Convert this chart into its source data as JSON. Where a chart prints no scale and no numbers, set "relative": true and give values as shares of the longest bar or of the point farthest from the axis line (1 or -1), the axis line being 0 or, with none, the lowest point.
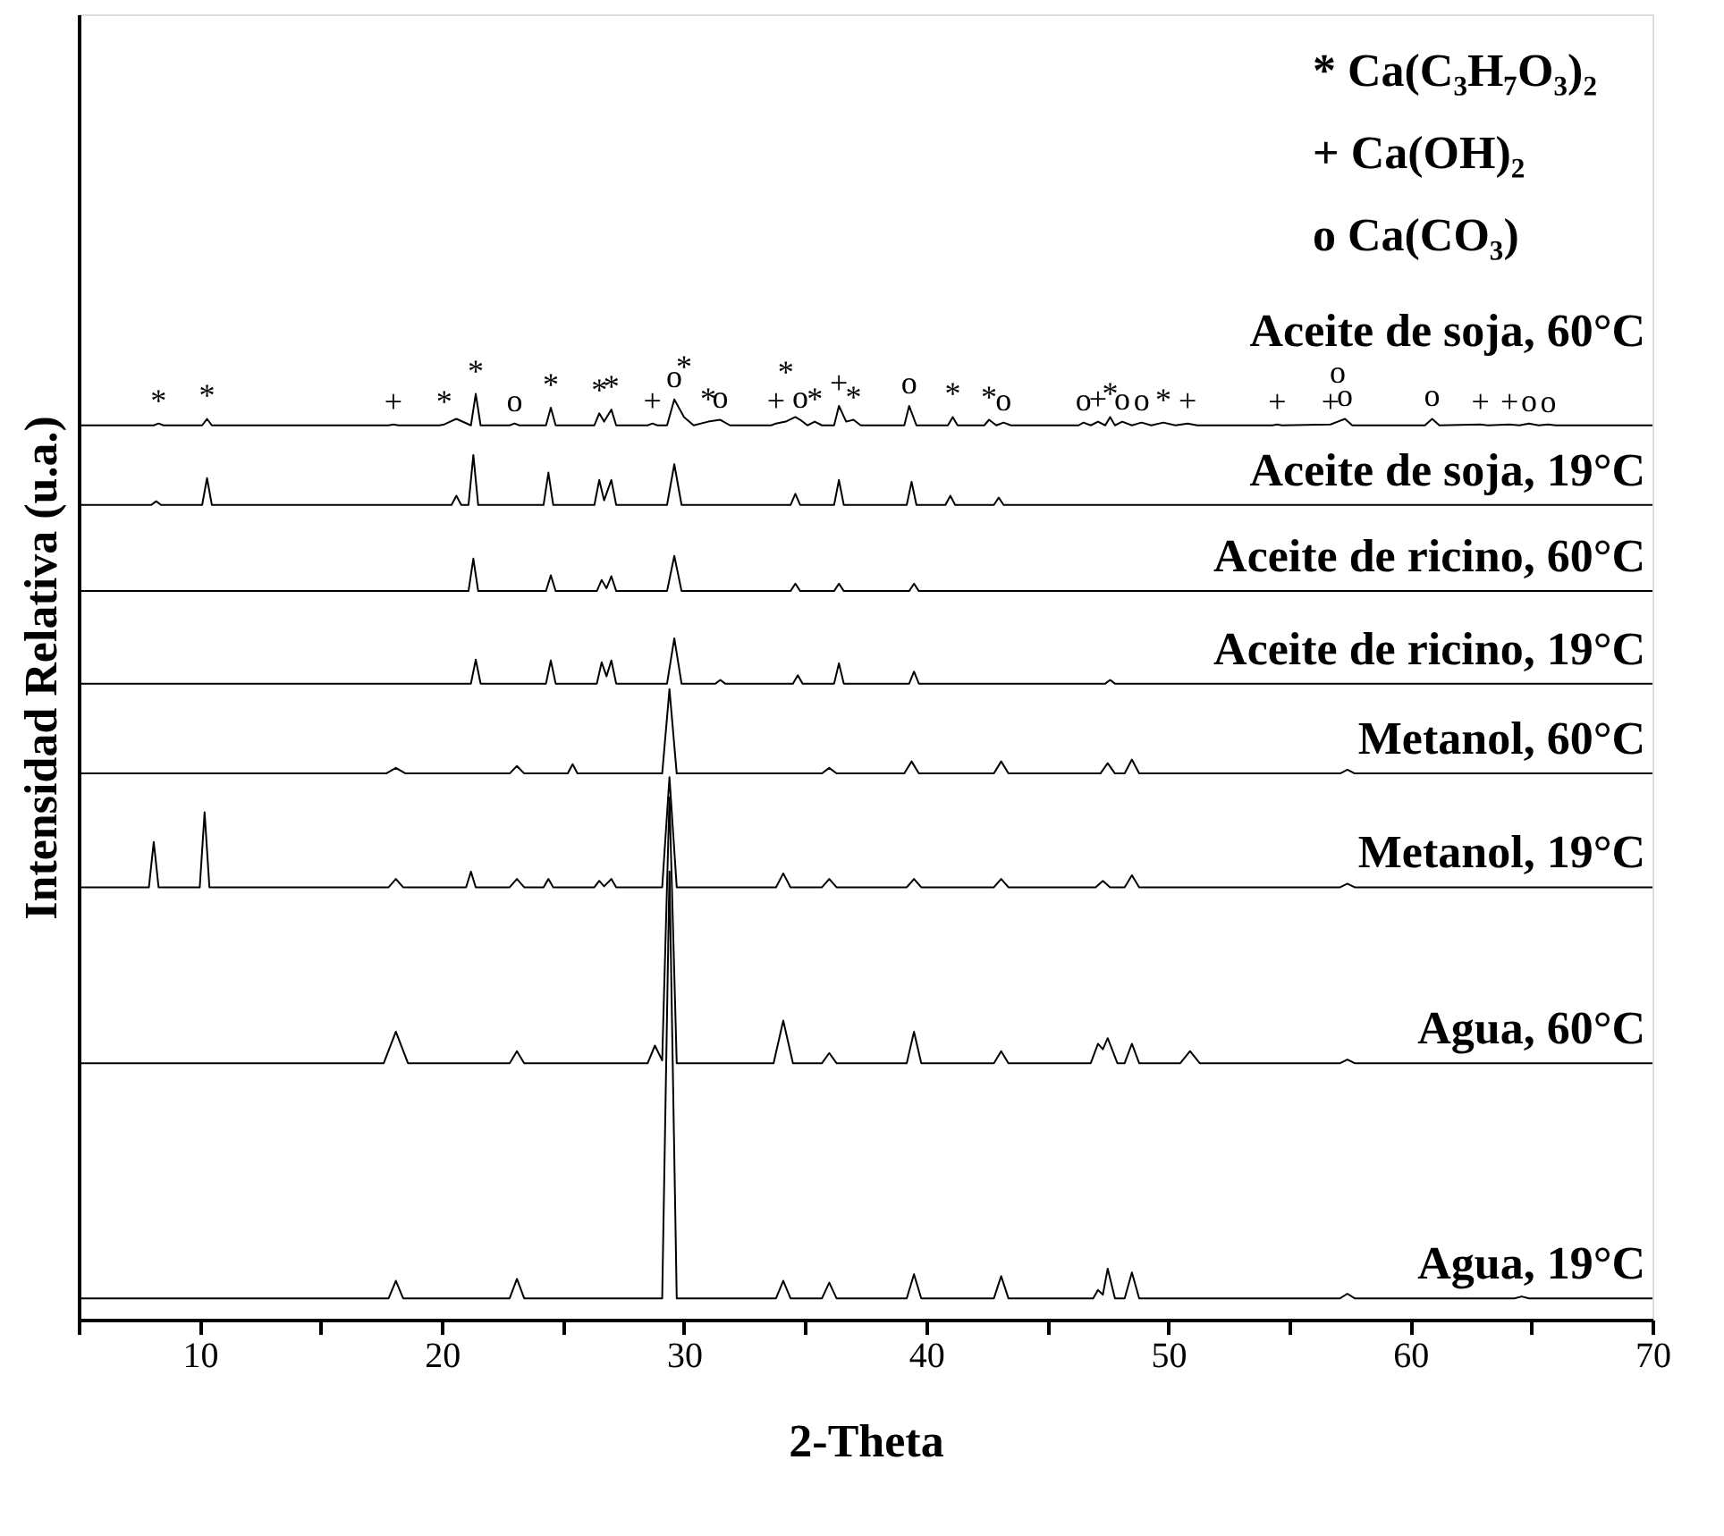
{
  "chart_data": {
    "type": "line",
    "relative": true,
    "xlabel": "2-Theta",
    "ylabel": "Intensidad Relativa (u.a.)",
    "xlim": [
      5,
      70
    ],
    "xticks": [
      {
        "value": 5,
        "label": null
      },
      10,
      {
        "value": 15,
        "label": null
      },
      20,
      {
        "value": 25,
        "label": null
      },
      30,
      {
        "value": 35,
        "label": null
      },
      40,
      {
        "value": 45,
        "label": null
      },
      50,
      {
        "value": 55,
        "label": null
      },
      60,
      {
        "value": 65,
        "label": null
      },
      70
    ],
    "grid": false,
    "marker": "none",
    "line_style": "solid",
    "series": [
      {
        "name": "Aceite de soja, 60°C",
        "color": "#000000",
        "x": [
          5,
          8.1,
          8.3,
          8.5,
          10.1,
          10.3,
          10.5,
          17.8,
          18.0,
          18.2,
          19.9,
          20.1,
          20.6,
          21.2,
          21.4,
          21.6,
          22.8,
          23.0,
          23.2,
          24.3,
          24.5,
          24.7,
          26.3,
          26.5,
          26.7,
          27.0,
          27.2,
          28.5,
          28.7,
          28.9,
          29.3,
          29.6,
          30.0,
          30.4,
          31.0,
          31.5,
          31.9,
          33.6,
          33.8,
          34.2,
          34.6,
          34.8,
          35.1,
          35.4,
          35.7,
          36.2,
          36.4,
          36.7,
          37.0,
          37.3,
          39.1,
          39.3,
          39.6,
          40.9,
          41.1,
          41.3,
          42.4,
          42.6,
          42.9,
          43.2,
          43.5,
          46.3,
          46.5,
          46.8,
          47.1,
          47.4,
          47.6,
          47.8,
          48.1,
          48.5,
          48.9,
          49.3,
          49.8,
          50.3,
          50.8,
          51.2,
          54.3,
          54.5,
          54.7,
          56.7,
          57.0,
          57.3,
          57.6,
          60.6,
          60.9,
          61.2,
          62.9,
          63.2,
          64.1,
          64.5,
          64.9,
          65.3,
          65.7,
          66.0,
          70
        ],
        "values": [
          0.966,
          0.966,
          0.968,
          0.966,
          0.966,
          0.973,
          0.966,
          0.966,
          0.967,
          0.966,
          0.966,
          0.967,
          0.973,
          0.966,
          1.0,
          0.966,
          0.966,
          0.968,
          0.966,
          0.966,
          0.985,
          0.966,
          0.966,
          0.979,
          0.97,
          0.983,
          0.966,
          0.966,
          0.968,
          0.966,
          0.966,
          0.994,
          0.975,
          0.966,
          0.97,
          0.972,
          0.966,
          0.966,
          0.968,
          0.97,
          0.975,
          0.972,
          0.966,
          0.97,
          0.966,
          0.966,
          0.987,
          0.97,
          0.972,
          0.966,
          0.966,
          0.987,
          0.966,
          0.966,
          0.975,
          0.966,
          0.966,
          0.972,
          0.966,
          0.969,
          0.966,
          0.966,
          0.969,
          0.966,
          0.97,
          0.966,
          0.975,
          0.966,
          0.97,
          0.966,
          0.969,
          0.966,
          0.969,
          0.966,
          0.968,
          0.966,
          0.966,
          0.967,
          0.966,
          0.967,
          0.97,
          0.973,
          0.966,
          0.966,
          0.973,
          0.966,
          0.967,
          0.966,
          0.967,
          0.966,
          0.968,
          0.966,
          0.967,
          0.966,
          0.966
        ]
      },
      {
        "name": "Aceite de soja, 19°C",
        "color": "#000000",
        "x": [
          5,
          8.0,
          8.2,
          8.4,
          10.1,
          10.3,
          10.5,
          20.4,
          20.6,
          20.8,
          21.1,
          21.3,
          21.5,
          24.2,
          24.4,
          24.6,
          26.3,
          26.5,
          26.7,
          27.0,
          27.2,
          29.3,
          29.6,
          29.9,
          34.4,
          34.6,
          34.8,
          36.2,
          36.4,
          36.6,
          39.2,
          39.4,
          39.6,
          40.8,
          41.0,
          41.2,
          42.8,
          43.0,
          43.2,
          70
        ],
        "values": [
          0.88,
          0.88,
          0.884,
          0.88,
          0.88,
          0.909,
          0.88,
          0.88,
          0.89,
          0.88,
          0.88,
          0.934,
          0.88,
          0.88,
          0.915,
          0.88,
          0.88,
          0.907,
          0.885,
          0.907,
          0.88,
          0.88,
          0.924,
          0.88,
          0.88,
          0.892,
          0.88,
          0.88,
          0.907,
          0.88,
          0.88,
          0.905,
          0.88,
          0.88,
          0.89,
          0.88,
          0.88,
          0.888,
          0.88,
          0.88
        ]
      },
      {
        "name": "Aceite de ricino, 60°C",
        "color": "#000000",
        "x": [
          5,
          21.1,
          21.3,
          21.5,
          24.3,
          24.5,
          24.7,
          26.4,
          26.6,
          26.8,
          27.0,
          27.2,
          29.3,
          29.6,
          29.9,
          34.4,
          34.6,
          34.8,
          36.2,
          36.4,
          36.6,
          39.3,
          39.5,
          39.7,
          70
        ],
        "values": [
          0.787,
          0.787,
          0.822,
          0.787,
          0.787,
          0.804,
          0.787,
          0.787,
          0.799,
          0.79,
          0.803,
          0.787,
          0.787,
          0.825,
          0.787,
          0.787,
          0.795,
          0.787,
          0.787,
          0.795,
          0.787,
          0.787,
          0.795,
          0.787,
          0.787
        ]
      },
      {
        "name": "Aceite de ricino, 19°C",
        "color": "#000000",
        "x": [
          5,
          21.2,
          21.4,
          21.6,
          24.3,
          24.5,
          24.7,
          26.4,
          26.6,
          26.8,
          27.0,
          27.2,
          29.3,
          29.6,
          29.9,
          31.3,
          31.5,
          31.7,
          34.5,
          34.7,
          34.9,
          36.2,
          36.4,
          36.6,
          39.3,
          39.5,
          39.7,
          47.4,
          47.6,
          47.8,
          70
        ],
        "values": [
          0.687,
          0.687,
          0.713,
          0.687,
          0.687,
          0.712,
          0.687,
          0.687,
          0.71,
          0.695,
          0.712,
          0.687,
          0.687,
          0.736,
          0.687,
          0.687,
          0.691,
          0.687,
          0.687,
          0.696,
          0.687,
          0.687,
          0.709,
          0.687,
          0.687,
          0.7,
          0.687,
          0.687,
          0.691,
          0.687,
          0.687
        ]
      },
      {
        "name": "Metanol, 60°C",
        "color": "#000000",
        "x": [
          5,
          17.7,
          18.1,
          18.5,
          22.8,
          23.1,
          23.4,
          25.2,
          25.4,
          25.6,
          29.1,
          29.4,
          29.7,
          35.7,
          36.0,
          36.3,
          39.1,
          39.4,
          39.7,
          42.8,
          43.1,
          43.4,
          47.2,
          47.5,
          47.8,
          48.2,
          48.5,
          48.8,
          57.1,
          57.4,
          57.7,
          70
        ],
        "values": [
          0.59,
          0.59,
          0.596,
          0.59,
          0.59,
          0.598,
          0.59,
          0.59,
          0.6,
          0.59,
          0.59,
          0.681,
          0.59,
          0.59,
          0.596,
          0.59,
          0.59,
          0.603,
          0.59,
          0.59,
          0.603,
          0.59,
          0.59,
          0.601,
          0.59,
          0.59,
          0.605,
          0.59,
          0.59,
          0.594,
          0.59,
          0.59
        ]
      },
      {
        "name": "Metanol, 19°C",
        "color": "#000000",
        "x": [
          5,
          7.9,
          8.1,
          8.3,
          10.0,
          10.2,
          10.4,
          17.8,
          18.1,
          18.4,
          21.0,
          21.2,
          21.4,
          22.8,
          23.1,
          23.4,
          24.2,
          24.4,
          24.6,
          26.3,
          26.5,
          26.7,
          27.0,
          27.2,
          29.1,
          29.4,
          29.7,
          33.8,
          34.1,
          34.4,
          35.7,
          36.0,
          36.3,
          39.2,
          39.5,
          39.8,
          42.8,
          43.1,
          43.4,
          47.0,
          47.3,
          47.6,
          48.2,
          48.5,
          48.8,
          57.1,
          57.4,
          57.7,
          70
        ],
        "values": [
          0.467,
          0.467,
          0.516,
          0.467,
          0.467,
          0.548,
          0.467,
          0.467,
          0.476,
          0.467,
          0.467,
          0.484,
          0.467,
          0.467,
          0.476,
          0.467,
          0.467,
          0.476,
          0.467,
          0.467,
          0.474,
          0.468,
          0.476,
          0.467,
          0.467,
          0.586,
          0.467,
          0.467,
          0.482,
          0.467,
          0.467,
          0.476,
          0.467,
          0.467,
          0.476,
          0.467,
          0.467,
          0.476,
          0.467,
          0.467,
          0.474,
          0.467,
          0.467,
          0.48,
          0.467,
          0.467,
          0.471,
          0.467,
          0.467
        ]
      },
      {
        "name": "Agua, 60°C",
        "color": "#000000",
        "x": [
          5,
          17.6,
          18.1,
          18.6,
          22.8,
          23.1,
          23.4,
          28.5,
          28.8,
          29.1,
          29.4,
          29.7,
          33.7,
          34.1,
          34.5,
          35.7,
          36.0,
          36.3,
          39.2,
          39.5,
          39.8,
          42.8,
          43.1,
          43.4,
          46.8,
          47.1,
          47.3,
          47.5,
          47.9,
          48.2,
          48.5,
          48.8,
          50.5,
          50.9,
          51.3,
          57.1,
          57.4,
          57.7,
          70
        ],
        "values": [
          0.277,
          0.277,
          0.311,
          0.277,
          0.277,
          0.29,
          0.277,
          0.277,
          0.296,
          0.28,
          0.564,
          0.277,
          0.277,
          0.323,
          0.277,
          0.277,
          0.288,
          0.277,
          0.277,
          0.311,
          0.277,
          0.277,
          0.29,
          0.277,
          0.277,
          0.298,
          0.292,
          0.304,
          0.277,
          0.277,
          0.298,
          0.277,
          0.277,
          0.29,
          0.277,
          0.277,
          0.281,
          0.277,
          0.277
        ]
      },
      {
        "name": "Agua, 19°C",
        "color": "#000000",
        "x": [
          5,
          17.8,
          18.1,
          18.4,
          22.8,
          23.1,
          23.4,
          29.1,
          29.4,
          29.7,
          33.8,
          34.1,
          34.4,
          35.7,
          36.0,
          36.3,
          39.2,
          39.5,
          39.8,
          42.8,
          43.1,
          43.4,
          46.9,
          47.1,
          47.3,
          47.5,
          47.8,
          48.2,
          48.5,
          48.8,
          57.1,
          57.4,
          57.7,
          64.3,
          64.6,
          64.9,
          70
        ],
        "values": [
          0.023,
          0.023,
          0.042,
          0.023,
          0.023,
          0.044,
          0.023,
          0.023,
          0.484,
          0.023,
          0.023,
          0.042,
          0.023,
          0.023,
          0.04,
          0.023,
          0.023,
          0.049,
          0.023,
          0.023,
          0.047,
          0.023,
          0.023,
          0.032,
          0.027,
          0.055,
          0.023,
          0.023,
          0.051,
          0.023,
          0.023,
          0.028,
          0.023,
          0.023,
          0.025,
          0.023,
          0.023
        ]
      }
    ],
    "annotations": [
      "* Ca(C₃H₇O₃)₂",
      "+ Ca(OH)₂",
      "o Ca(CO₃)",
      {
        "text": "*",
        "x": 8.3,
        "y": 0.968
      },
      {
        "text": "*",
        "x": 10.3,
        "y": 0.973
      },
      {
        "text": "+",
        "x": 18.0,
        "y": 0.967
      },
      {
        "text": "*",
        "x": 20.1,
        "y": 0.967
      },
      {
        "text": "*",
        "x": 21.4,
        "y": 1.0
      },
      {
        "text": "o",
        "x": 23.0,
        "y": 0.968
      },
      {
        "text": "*",
        "x": 24.5,
        "y": 0.985
      },
      {
        "text": "*",
        "x": 26.5,
        "y": 0.979
      },
      {
        "text": "*",
        "x": 27.0,
        "y": 0.983
      },
      {
        "text": "+",
        "x": 28.7,
        "y": 0.968
      },
      {
        "text": "o",
        "x": 29.6,
        "y": 0.994
      },
      {
        "text": "*",
        "x": 30.0,
        "y": 0.975
      },
      {
        "text": "*",
        "x": 31.0,
        "y": 0.97
      },
      {
        "text": "o",
        "x": 31.5,
        "y": 0.972
      },
      {
        "text": "+",
        "x": 33.8,
        "y": 0.968
      },
      {
        "text": "*",
        "x": 34.2,
        "y": 0.97
      },
      {
        "text": "o",
        "x": 34.8,
        "y": 0.972
      },
      {
        "text": "*",
        "x": 35.4,
        "y": 0.97
      },
      {
        "text": "+",
        "x": 36.4,
        "y": 0.987
      },
      {
        "text": "*",
        "x": 37.0,
        "y": 0.972
      },
      {
        "text": "o",
        "x": 39.3,
        "y": 0.987
      },
      {
        "text": "*",
        "x": 41.1,
        "y": 0.975
      },
      {
        "text": "*",
        "x": 42.6,
        "y": 0.972
      },
      {
        "text": "o",
        "x": 43.2,
        "y": 0.969
      },
      {
        "text": "o",
        "x": 46.5,
        "y": 0.969
      },
      {
        "text": "+",
        "x": 47.1,
        "y": 0.97
      },
      {
        "text": "*",
        "x": 47.6,
        "y": 0.975
      },
      {
        "text": "o",
        "x": 48.1,
        "y": 0.97
      },
      {
        "text": "o",
        "x": 48.9,
        "y": 0.969
      },
      {
        "text": "*",
        "x": 49.8,
        "y": 0.969
      },
      {
        "text": "+",
        "x": 50.8,
        "y": 0.968
      },
      {
        "text": "+",
        "x": 54.5,
        "y": 0.967
      },
      {
        "text": "+",
        "x": 56.7,
        "y": 0.967
      },
      {
        "text": "o",
        "x": 57.0,
        "y": 0.97
      },
      {
        "text": "o",
        "x": 57.3,
        "y": 0.973
      },
      {
        "text": "o",
        "x": 60.9,
        "y": 0.973
      },
      {
        "text": "+",
        "x": 62.9,
        "y": 0.967
      },
      {
        "text": "+",
        "x": 64.1,
        "y": 0.967
      },
      {
        "text": "o",
        "x": 64.9,
        "y": 0.968
      },
      {
        "text": "o",
        "x": 65.7,
        "y": 0.967
      }
    ]
  }
}
